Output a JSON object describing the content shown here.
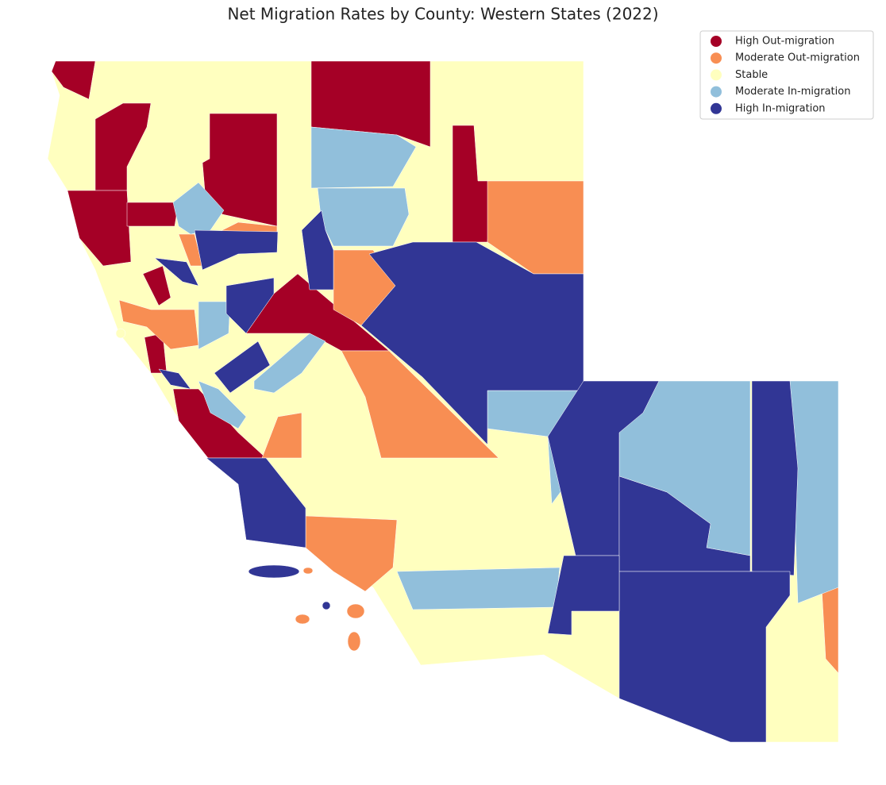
{
  "title": "Net Migration Rates by County: Western States (2022)",
  "legend": {
    "items": [
      {
        "label": "High Out-migration",
        "color": "#a50026"
      },
      {
        "label": "Moderate Out-migration",
        "color": "#f88e53"
      },
      {
        "label": "Stable",
        "color": "#ffffbf"
      },
      {
        "label": "Moderate In-migration",
        "color": "#91bfdb"
      },
      {
        "label": "High In-migration",
        "color": "#313695"
      }
    ]
  }
}
